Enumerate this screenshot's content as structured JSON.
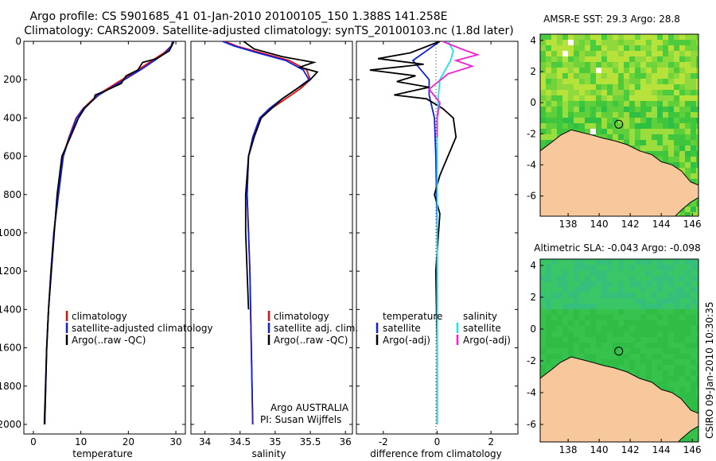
{
  "header": {
    "title_line1": "Argo profile: CS 5901685_41 01-Jan-2010 20100105_150 1.388S 141.258E",
    "title_line2": "Climatology: CARS2009. Satellite-adjusted climatology: synTS_20100103.nc (1.8d later)"
  },
  "colors": {
    "climatology": "#e01010",
    "satellite": "#1020e0",
    "argo": "#000000",
    "satellite_salinity": "#20e0f0",
    "argo_adj_salinity": "#f020d0",
    "land": "#f7c89b",
    "sst_base": "#63d63a",
    "sla_base": "#38c24a"
  },
  "chart_data": [
    {
      "id": "temperature",
      "type": "line",
      "xlabel": "temperature",
      "ylabel": "",
      "xlim": [
        -2,
        32
      ],
      "ylim": [
        2050,
        0
      ],
      "y_inverted": true,
      "xticks": [
        0,
        10,
        20,
        30
      ],
      "yticks": [
        0,
        200,
        400,
        600,
        800,
        1000,
        1200,
        1400,
        1600,
        1800,
        2000
      ],
      "legend": [
        "climatology",
        "satellite-adjusted climatology",
        "Argo(..raw -QC)"
      ],
      "series": [
        {
          "name": "climatology",
          "color": "#e01010",
          "x": [
            29.3,
            29.0,
            27.5,
            25.0,
            22.0,
            18.0,
            13.5,
            10.5,
            9.0,
            7.5,
            6.2,
            5.2,
            4.3,
            3.7,
            3.2,
            2.8,
            2.4
          ],
          "y": [
            0,
            25,
            60,
            100,
            150,
            210,
            280,
            350,
            400,
            500,
            600,
            800,
            1000,
            1200,
            1400,
            1600,
            2000
          ]
        },
        {
          "name": "satellite-adjusted climatology",
          "color": "#1020e0",
          "x": [
            29.4,
            29.0,
            27.8,
            25.5,
            22.5,
            18.5,
            13.8,
            10.6,
            9.1,
            7.6,
            6.3,
            5.3,
            4.3,
            3.7,
            3.2,
            2.8,
            2.4
          ],
          "y": [
            0,
            25,
            60,
            100,
            150,
            210,
            280,
            350,
            400,
            500,
            600,
            800,
            1000,
            1200,
            1400,
            1600,
            2000
          ]
        },
        {
          "name": "Argo(..raw -QC)",
          "color": "#000000",
          "x": [
            29.6,
            29.2,
            28.6,
            26.0,
            23.0,
            22.0,
            19.5,
            18.5,
            15.0,
            13.0,
            12.8,
            10.8,
            9.5,
            7.8,
            6.0,
            5.0,
            4.4,
            3.8,
            3.2,
            2.8,
            2.3
          ],
          "y": [
            0,
            20,
            50,
            90,
            110,
            150,
            180,
            220,
            260,
            280,
            300,
            350,
            400,
            500,
            600,
            800,
            1000,
            1200,
            1400,
            1600,
            2000
          ]
        }
      ]
    },
    {
      "id": "salinity",
      "type": "line",
      "xlabel": "salinity",
      "ylabel": "",
      "xlim": [
        33.8,
        36.1
      ],
      "ylim": [
        2050,
        0
      ],
      "y_inverted": true,
      "xticks": [
        34,
        34.5,
        35,
        35.5,
        36
      ],
      "legend": [
        "climatology",
        "satellite adj. clim.",
        "Argo(..raw -QC)"
      ],
      "series": [
        {
          "name": "climatology",
          "color": "#e01010",
          "x": [
            34.28,
            34.45,
            34.8,
            35.2,
            35.45,
            35.5,
            35.35,
            35.15,
            34.95,
            34.8,
            34.7,
            34.62,
            34.6,
            34.62,
            34.64,
            34.66,
            34.68
          ],
          "y": [
            0,
            25,
            60,
            100,
            150,
            200,
            250,
            300,
            350,
            400,
            500,
            600,
            800,
            1000,
            1200,
            1600,
            2000
          ]
        },
        {
          "name": "satellite adj. clim.",
          "color": "#1020e0",
          "x": [
            34.25,
            34.42,
            34.75,
            35.15,
            35.4,
            35.48,
            35.3,
            35.1,
            34.92,
            34.78,
            34.68,
            34.62,
            34.6,
            34.62,
            34.64,
            34.66,
            34.68
          ],
          "y": [
            0,
            25,
            60,
            100,
            150,
            200,
            250,
            300,
            350,
            400,
            500,
            600,
            800,
            1000,
            1200,
            1600,
            2000
          ]
        },
        {
          "name": "Argo(..raw -QC)",
          "color": "#000000",
          "x": [
            34.55,
            34.7,
            35.1,
            35.55,
            35.35,
            35.6,
            35.5,
            35.3,
            35.1,
            34.95,
            34.8,
            34.7,
            34.62,
            34.58,
            34.58,
            34.6,
            34.62
          ],
          "y": [
            0,
            40,
            80,
            110,
            135,
            160,
            200,
            250,
            300,
            350,
            400,
            500,
            600,
            800,
            1000,
            1200,
            1400
          ]
        }
      ]
    },
    {
      "id": "difference",
      "type": "line",
      "xlabel": "difference from climatology",
      "ylabel": "",
      "xlim": [
        -3,
        3
      ],
      "ylim": [
        2050,
        0
      ],
      "y_inverted": true,
      "xticks": [
        -2,
        0,
        2
      ],
      "legend_left_title": "temperature",
      "legend_right_title": "salinity",
      "legend": [
        "satellite",
        "Argo(-adj)",
        "satellite",
        "Argo(-adj)"
      ],
      "series": [
        {
          "name": "temperature satellite",
          "color": "#1020e0",
          "x": [
            0.1,
            -0.4,
            -0.9,
            -0.6,
            -0.3,
            -0.3,
            -0.1,
            -0.05,
            0,
            0
          ],
          "y": [
            0,
            50,
            100,
            150,
            200,
            280,
            400,
            600,
            1000,
            2000
          ]
        },
        {
          "name": "temperature Argo(-adj)",
          "color": "#000000",
          "x": [
            0.1,
            -1.0,
            -2.2,
            -0.5,
            -2.5,
            -0.8,
            -1.5,
            -0.3,
            -1.6,
            -0.4,
            0.2,
            0.6,
            0.7,
            0.4,
            0.1,
            -0.1,
            0.1,
            -0.05,
            0,
            0
          ],
          "y": [
            0,
            60,
            90,
            120,
            150,
            180,
            210,
            240,
            280,
            300,
            350,
            400,
            500,
            600,
            700,
            800,
            900,
            1200,
            1600,
            2000
          ]
        },
        {
          "name": "salinity satellite",
          "color": "#20e0f0",
          "x": [
            0.4,
            0.6,
            0.5,
            0.3,
            0.1,
            0.05,
            0,
            0,
            0,
            0
          ],
          "y": [
            0,
            50,
            100,
            150,
            200,
            280,
            400,
            600,
            1000,
            2000
          ]
        },
        {
          "name": "salinity Argo(-adj)",
          "color": "#f020d0",
          "x": [
            0.2,
            0.9,
            1.5,
            0.7,
            1.3,
            0.4,
            -0.3,
            0.1,
            0,
            0
          ],
          "y": [
            0,
            40,
            70,
            100,
            130,
            170,
            250,
            320,
            400,
            500
          ]
        }
      ]
    },
    {
      "id": "sst_map",
      "type": "heatmap",
      "title": "AMSR-E SST: 29.3 Argo: 28.8",
      "xlim": [
        136.2,
        146.4
      ],
      "ylim": [
        -7.3,
        4.4
      ],
      "xticks": [
        138,
        140,
        142,
        144,
        146
      ],
      "yticks": [
        -6,
        -4,
        -2,
        0,
        2,
        4
      ],
      "marker": {
        "lon": 141.258,
        "lat": -1.388
      }
    },
    {
      "id": "sla_map",
      "type": "heatmap",
      "title": "Altimetric SLA: -0.043 Argo: -0.098",
      "xlim": [
        136.2,
        146.4
      ],
      "ylim": [
        -7.1,
        4.4
      ],
      "xticks": [
        138,
        140,
        142,
        144,
        146
      ],
      "yticks": [
        -6,
        -4,
        -2,
        0,
        2,
        4
      ],
      "marker": {
        "lon": 141.258,
        "lat": -1.388
      }
    }
  ],
  "notes": {
    "argo_country": "Argo AUSTRALIA",
    "pi": "PI: Susan Wijffels",
    "timestamp": "CSIRO 09-Jan-2010 10:30:35"
  }
}
